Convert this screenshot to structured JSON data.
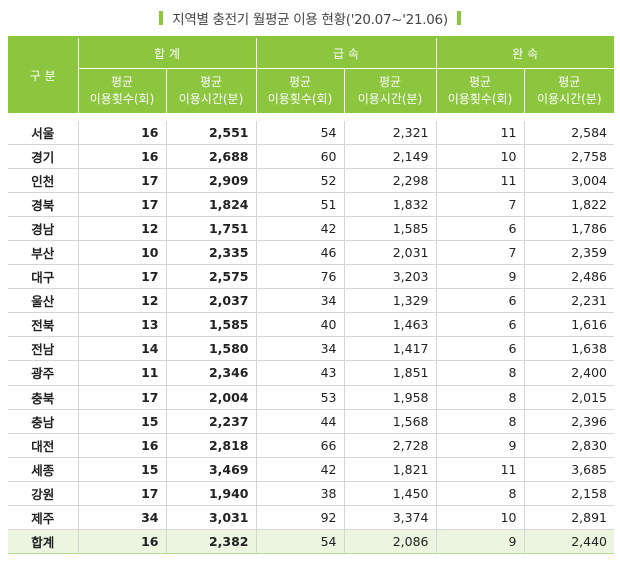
{
  "title": "지역별 충전기 월평균 이용 현황('20.07~'21.06)",
  "accent_color": "#8cc63f",
  "header": {
    "region": "구 분",
    "groups": [
      "합 계",
      "급 속",
      "완 속"
    ],
    "sub": [
      {
        "l1": "평균",
        "l2": "이용횟수(회)"
      },
      {
        "l1": "평균",
        "l2": "이용시간(분)"
      },
      {
        "l1": "평균",
        "l2": "이용횟수(회)"
      },
      {
        "l1": "평균",
        "l2": "이용시간(분)"
      },
      {
        "l1": "평균",
        "l2": "이용횟수(회)"
      },
      {
        "l1": "평균",
        "l2": "이용시간(분)"
      }
    ]
  },
  "rows": [
    [
      "서울",
      "16",
      "2,551",
      "54",
      "2,321",
      "11",
      "2,584"
    ],
    [
      "경기",
      "16",
      "2,688",
      "60",
      "2,149",
      "10",
      "2,758"
    ],
    [
      "인천",
      "17",
      "2,909",
      "52",
      "2,298",
      "11",
      "3,004"
    ],
    [
      "경북",
      "17",
      "1,824",
      "51",
      "1,832",
      "7",
      "1,822"
    ],
    [
      "경남",
      "12",
      "1,751",
      "42",
      "1,585",
      "6",
      "1,786"
    ],
    [
      "부산",
      "10",
      "2,335",
      "46",
      "2,031",
      "7",
      "2,359"
    ],
    [
      "대구",
      "17",
      "2,575",
      "76",
      "3,203",
      "9",
      "2,486"
    ],
    [
      "울산",
      "12",
      "2,037",
      "34",
      "1,329",
      "6",
      "2,231"
    ],
    [
      "전북",
      "13",
      "1,585",
      "40",
      "1,463",
      "6",
      "1,616"
    ],
    [
      "전남",
      "14",
      "1,580",
      "34",
      "1,417",
      "6",
      "1,638"
    ],
    [
      "광주",
      "11",
      "2,346",
      "43",
      "1,851",
      "8",
      "2,400"
    ],
    [
      "충북",
      "17",
      "2,004",
      "53",
      "1,958",
      "8",
      "2,015"
    ],
    [
      "충남",
      "15",
      "2,237",
      "44",
      "1,568",
      "8",
      "2,396"
    ],
    [
      "대전",
      "16",
      "2,818",
      "66",
      "2,728",
      "9",
      "2,830"
    ],
    [
      "세종",
      "15",
      "3,469",
      "42",
      "1,821",
      "11",
      "3,685"
    ],
    [
      "강원",
      "17",
      "1,940",
      "38",
      "1,450",
      "8",
      "2,158"
    ],
    [
      "제주",
      "34",
      "3,031",
      "92",
      "3,374",
      "10",
      "2,891"
    ]
  ],
  "total": [
    "합계",
    "16",
    "2,382",
    "54",
    "2,086",
    "9",
    "2,440"
  ]
}
